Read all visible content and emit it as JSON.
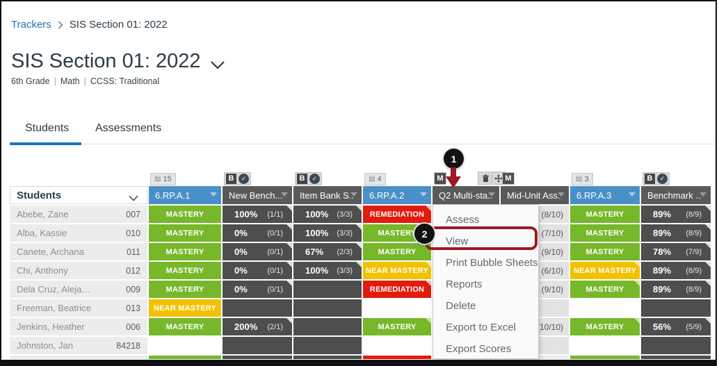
{
  "colors": {
    "green": "#76b82a",
    "yellow": "#f2c200",
    "red": "#e31b0c",
    "blue": "#4a90c8",
    "darkhead": "#5a5a5a",
    "darkcell": "#4e4e4e",
    "lightcell": "#e3e3e3",
    "studentbg": "#ececec",
    "link": "#2577b5",
    "accent": "#1d76b8",
    "callout": "#9a1b25"
  },
  "breadcrumb": {
    "link": "Trackers",
    "current": "SIS Section 01: 2022"
  },
  "header": {
    "title": "SIS Section 01: 2022",
    "subtitle_parts": [
      "6th Grade",
      "Math",
      "CCSS: Traditional"
    ]
  },
  "tabs": [
    {
      "label": "Students",
      "active": true
    },
    {
      "label": "Assessments",
      "active": false
    }
  ],
  "icons": {
    "b": "B",
    "m": "M",
    "check": "✓",
    "list": "▤"
  },
  "table": {
    "students_header": "Students",
    "columns": [
      {
        "label": "6.RP.A.1",
        "kind": "standard",
        "badge": {
          "kind": "list",
          "count": "15"
        }
      },
      {
        "label": "New Bench...",
        "kind": "assessment",
        "badge": {
          "kind": "b-check"
        }
      },
      {
        "label": "Item Bank S...",
        "kind": "assessment",
        "badge": {
          "kind": "b-check"
        }
      },
      {
        "label": "6.RP.A.2",
        "kind": "standard",
        "badge": {
          "kind": "list",
          "count": "4"
        }
      },
      {
        "label": "Q2 Multi-sta...",
        "kind": "assessment",
        "badge": {
          "kind": "m"
        },
        "tools": [
          "trash",
          "move"
        ]
      },
      {
        "label": "Mid-Unit Ass...",
        "kind": "assessment",
        "badge": {
          "kind": "m"
        }
      },
      {
        "label": "6.RP.A.3",
        "kind": "standard",
        "badge": {
          "kind": "list",
          "count": "3"
        }
      },
      {
        "label": "Benchmark ...",
        "kind": "assessment",
        "badge": {
          "kind": "b-check"
        }
      }
    ],
    "rows": [
      {
        "name": "Abebe, Zane",
        "id": "007",
        "cells": [
          {
            "k": "label",
            "t": "MASTERY",
            "s": "mastery"
          },
          {
            "k": "score",
            "p": "100%",
            "f": "(1/1)",
            "corner": true
          },
          {
            "k": "score",
            "p": "100%",
            "f": "(3/3)",
            "corner": true
          },
          {
            "k": "label",
            "t": "REMEDIATION",
            "s": "remediation",
            "corner": true
          },
          {
            "k": "empty",
            "v": "dark"
          },
          {
            "k": "frac",
            "f": "(8/10)"
          },
          {
            "k": "label",
            "t": "MASTERY",
            "s": "mastery"
          },
          {
            "k": "score",
            "p": "89%",
            "f": "(8/9)",
            "corner": true
          }
        ]
      },
      {
        "name": "Alba, Kassie",
        "id": "010",
        "cells": [
          {
            "k": "label",
            "t": "MASTERY",
            "s": "mastery"
          },
          {
            "k": "score",
            "p": "0%",
            "f": "(0/1)",
            "corner": true
          },
          {
            "k": "score",
            "p": "100%",
            "f": "(3/3)",
            "corner": true
          },
          {
            "k": "label",
            "t": "MASTERY",
            "s": "mastery"
          },
          {
            "k": "empty",
            "v": "dark"
          },
          {
            "k": "frac",
            "f": "(7/10)"
          },
          {
            "k": "label",
            "t": "MASTERY",
            "s": "mastery"
          },
          {
            "k": "score",
            "p": "89%",
            "f": "(8/9)",
            "corner": true
          }
        ]
      },
      {
        "name": "Canete, Archana",
        "id": "011",
        "cells": [
          {
            "k": "label",
            "t": "MASTERY",
            "s": "mastery"
          },
          {
            "k": "score",
            "p": "0%",
            "f": "(0/1)",
            "corner": true
          },
          {
            "k": "score",
            "p": "67%",
            "f": "(2/3)",
            "corner": true
          },
          {
            "k": "label",
            "t": "MASTERY",
            "s": "mastery"
          },
          {
            "k": "empty",
            "v": "dark"
          },
          {
            "k": "frac",
            "f": "(9/10)"
          },
          {
            "k": "label",
            "t": "MASTERY",
            "s": "mastery"
          },
          {
            "k": "score",
            "p": "78%",
            "f": "(7/9)",
            "corner": true
          }
        ]
      },
      {
        "name": "Chi, Anthony",
        "id": "012",
        "cells": [
          {
            "k": "label",
            "t": "MASTERY",
            "s": "mastery"
          },
          {
            "k": "score",
            "p": "0%",
            "f": "(0/1)",
            "corner": true
          },
          {
            "k": "score",
            "p": "100%",
            "f": "(3/3)",
            "corner": true
          },
          {
            "k": "label",
            "t": "NEAR MASTERY",
            "s": "near",
            "corner": true
          },
          {
            "k": "empty",
            "v": "dark"
          },
          {
            "k": "frac",
            "f": "(6/10)"
          },
          {
            "k": "label",
            "t": "NEAR MASTERY",
            "s": "near",
            "corner": true
          },
          {
            "k": "score",
            "p": "89%",
            "f": "(8/9)",
            "corner": true
          }
        ]
      },
      {
        "name": "Dela Cruz, Aleja…",
        "id": "009",
        "cells": [
          {
            "k": "label",
            "t": "MASTERY",
            "s": "mastery"
          },
          {
            "k": "score",
            "p": "0%",
            "f": "(0/1)",
            "corner": true
          },
          {
            "k": "empty",
            "v": "dark"
          },
          {
            "k": "label",
            "t": "REMEDIATION",
            "s": "remediation",
            "corner": true
          },
          {
            "k": "empty",
            "v": "dark"
          },
          {
            "k": "frac",
            "f": "(9/10)"
          },
          {
            "k": "label",
            "t": "MASTERY",
            "s": "mastery",
            "corner": true
          },
          {
            "k": "score",
            "p": "89%",
            "f": "(8/9)",
            "corner": true
          }
        ]
      },
      {
        "name": "Freeman, Beatrice",
        "id": "013",
        "cells": [
          {
            "k": "label",
            "t": "NEAR MASTERY",
            "s": "near"
          },
          {
            "k": "empty",
            "v": "dark"
          },
          {
            "k": "empty",
            "v": "dark"
          },
          {
            "k": "empty",
            "v": "white"
          },
          {
            "k": "empty",
            "v": "dark"
          },
          {
            "k": "empty",
            "v": "light"
          },
          {
            "k": "empty",
            "v": "white"
          },
          {
            "k": "empty",
            "v": "dark"
          }
        ]
      },
      {
        "name": "Jenkins, Heather",
        "id": "006",
        "cells": [
          {
            "k": "label",
            "t": "MASTERY",
            "s": "mastery"
          },
          {
            "k": "score",
            "p": "200%",
            "f": "(2/1)",
            "corner": true
          },
          {
            "k": "empty",
            "v": "dark"
          },
          {
            "k": "label",
            "t": "MASTERY",
            "s": "mastery",
            "corner": true
          },
          {
            "k": "empty",
            "v": "dark"
          },
          {
            "k": "frac",
            "f": "(10/10)"
          },
          {
            "k": "label",
            "t": "MASTERY",
            "s": "mastery",
            "corner": true
          },
          {
            "k": "score",
            "p": "56%",
            "f": "(5/9)",
            "corner": true
          }
        ]
      },
      {
        "name": "Johnston, Jan",
        "id": "84218",
        "cells": [
          {
            "k": "empty",
            "v": "white"
          },
          {
            "k": "empty",
            "v": "dark"
          },
          {
            "k": "empty",
            "v": "dark"
          },
          {
            "k": "empty",
            "v": "white"
          },
          {
            "k": "empty",
            "v": "dark"
          },
          {
            "k": "empty",
            "v": "light"
          },
          {
            "k": "empty",
            "v": "white"
          },
          {
            "k": "empty",
            "v": "dark"
          }
        ]
      }
    ],
    "partial_row": [
      "light",
      "green",
      "dark",
      "dark",
      "red",
      "dark",
      "light",
      "green",
      "dark"
    ]
  },
  "menu": {
    "items": [
      "Assess",
      "View",
      "Print Bubble Sheets",
      "Reports",
      "Delete",
      "Export to Excel",
      "Export Scores"
    ],
    "highlighted": "View"
  },
  "callouts": [
    {
      "number": "1"
    },
    {
      "number": "2"
    }
  ]
}
